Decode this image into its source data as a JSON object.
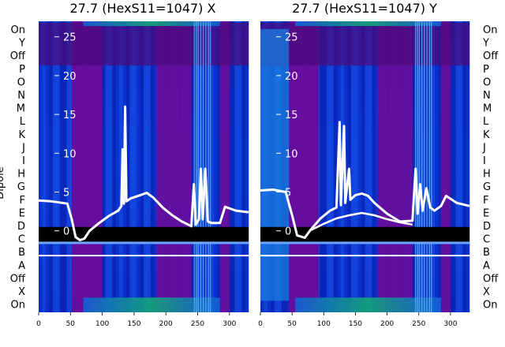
{
  "chart_data": [
    {
      "type": "heatmap",
      "title": "27.7 (HexS11=1047) X",
      "xlabel": "",
      "ylabel": "Dipole",
      "xlim": [
        0,
        330
      ],
      "x_ticks": [
        "0",
        "50",
        "100",
        "150",
        "200",
        "250",
        "300"
      ],
      "y_ticks": [
        "0",
        "5",
        "10",
        "15",
        "20",
        "25"
      ],
      "ylim": [
        -10.5,
        27
      ],
      "row_labels": [
        "On",
        "Y",
        "Off",
        "P",
        "O",
        "N",
        "M",
        "L",
        "K",
        "J",
        "I",
        "H",
        "G",
        "F",
        "E",
        "D",
        "C",
        "B",
        "A",
        "Off",
        "X",
        "On"
      ],
      "series": [
        {
          "values": [
            [
              0,
              3.9
            ],
            [
              20,
              3.8
            ],
            [
              45,
              3.5
            ],
            [
              52,
              1.5
            ],
            [
              58,
              -0.8
            ],
            [
              65,
              -1.2
            ],
            [
              72,
              -1.0
            ],
            [
              80,
              0.0
            ],
            [
              95,
              1.0
            ],
            [
              110,
              1.9
            ],
            [
              125,
              2.6
            ],
            [
              130,
              3.2
            ],
            [
              132,
              10.5
            ],
            [
              134,
              3.5
            ],
            [
              136,
              16.0
            ],
            [
              138,
              3.8
            ],
            [
              145,
              4.2
            ],
            [
              160,
              4.6
            ],
            [
              170,
              4.9
            ],
            [
              180,
              4.3
            ],
            [
              195,
              3.0
            ],
            [
              210,
              2.0
            ],
            [
              225,
              1.2
            ],
            [
              240,
              0.6
            ],
            [
              244,
              6.0
            ],
            [
              247,
              0.8
            ],
            [
              252,
              1.5
            ],
            [
              255,
              8.0
            ],
            [
              258,
              1.5
            ],
            [
              262,
              8.0
            ],
            [
              266,
              1.2
            ],
            [
              272,
              1.0
            ],
            [
              285,
              1.0
            ],
            [
              293,
              3.1
            ],
            [
              310,
              2.6
            ],
            [
              330,
              2.4
            ]
          ]
        }
      ]
    },
    {
      "type": "heatmap",
      "title": "27.7 (HexS11=1047) Y",
      "xlim": [
        0,
        330
      ],
      "x_ticks": [
        "0",
        "50",
        "100",
        "150",
        "200",
        "250",
        "300"
      ],
      "y_ticks": [
        "0",
        "5",
        "10",
        "15",
        "20",
        "25"
      ],
      "ylim": [
        -10.5,
        27
      ],
      "row_labels": [
        "On",
        "Y",
        "Off",
        "P",
        "O",
        "N",
        "M",
        "L",
        "K",
        "J",
        "I",
        "H",
        "G",
        "F",
        "E",
        "D",
        "C",
        "B",
        "A",
        "Off",
        "X",
        "On"
      ],
      "series": [
        {
          "values": [
            [
              0,
              5.2
            ],
            [
              20,
              5.3
            ],
            [
              40,
              5.0
            ],
            [
              50,
              2.0
            ],
            [
              58,
              -0.6
            ],
            [
              70,
              -0.9
            ],
            [
              80,
              0.2
            ],
            [
              95,
              1.6
            ],
            [
              110,
              2.6
            ],
            [
              120,
              3.0
            ],
            [
              125,
              14.0
            ],
            [
              127,
              3.3
            ],
            [
              132,
              13.5
            ],
            [
              134,
              3.6
            ],
            [
              140,
              8.0
            ],
            [
              142,
              4.0
            ],
            [
              150,
              4.6
            ],
            [
              160,
              4.8
            ],
            [
              170,
              4.5
            ],
            [
              180,
              3.6
            ],
            [
              200,
              2.2
            ],
            [
              220,
              1.2
            ],
            [
              240,
              1.3
            ],
            [
              245,
              8.0
            ],
            [
              248,
              2.2
            ],
            [
              252,
              6.0
            ],
            [
              256,
              2.6
            ],
            [
              262,
              5.5
            ],
            [
              268,
              3.0
            ],
            [
              275,
              2.6
            ],
            [
              285,
              3.2
            ],
            [
              293,
              4.5
            ],
            [
              310,
              3.6
            ],
            [
              330,
              3.2
            ]
          ]
        },
        {
          "values": [
            [
              80,
              0.1
            ],
            [
              100,
              0.9
            ],
            [
              120,
              1.6
            ],
            [
              140,
              2.0
            ],
            [
              160,
              2.3
            ],
            [
              180,
              2.0
            ],
            [
              200,
              1.5
            ],
            [
              220,
              1.1
            ],
            [
              240,
              0.8
            ]
          ]
        }
      ]
    }
  ],
  "colors": {
    "purple": "#6a0c9a",
    "dark_purple": "#4a0a7a",
    "blue": "#0a3fd6",
    "dark_blue": "#0a1fb0",
    "light_blue": "#1b7ee0",
    "teal": "#12a06a",
    "band": "#000000",
    "line": "#ffffff"
  }
}
